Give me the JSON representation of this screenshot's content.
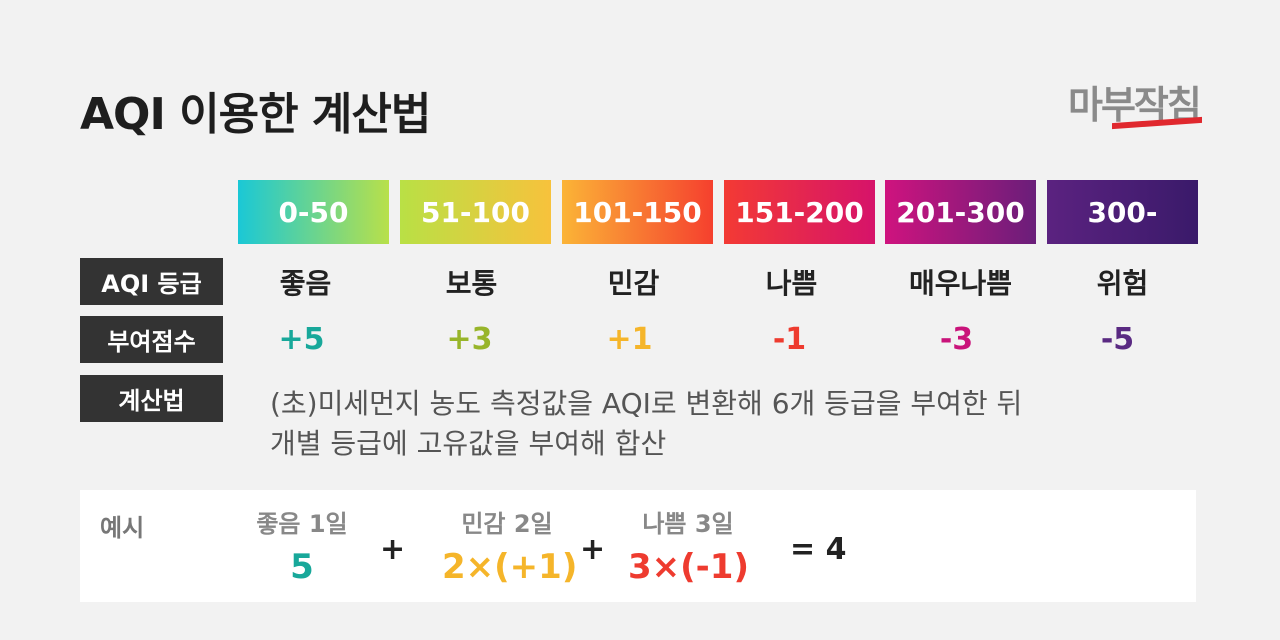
{
  "title": "AQI 이용한 계산법",
  "logo": "마부작침",
  "ranges": [
    {
      "label": "0-50",
      "color_from": "#1ac8d6",
      "color_to": "#b8e04a"
    },
    {
      "label": "51-100",
      "color_from": "#b9e045",
      "color_to": "#f7c23c"
    },
    {
      "label": "101-150",
      "color_from": "#fbb437",
      "color_to": "#f5402e"
    },
    {
      "label": "151-200",
      "color_from": "#f33a34",
      "color_to": "#d6136a"
    },
    {
      "label": "201-300",
      "color_from": "#cf137e",
      "color_to": "#6a1e7a"
    },
    {
      "label": "300-",
      "color_from": "#5b2280",
      "color_to": "#3a1a6a"
    }
  ],
  "labels": {
    "grade": "AQI 등급",
    "score": "부여점수",
    "method": "계산법"
  },
  "grades": [
    "좋음",
    "보통",
    "민감",
    "나쁨",
    "매우나쁨",
    "위험"
  ],
  "scores": [
    {
      "value": "+5",
      "color": "#18a89a"
    },
    {
      "value": "+3",
      "color": "#98b52a"
    },
    {
      "value": "+1",
      "color": "#f5b52a"
    },
    {
      "value": "-1",
      "color": "#ee3b2f"
    },
    {
      "value": "-3",
      "color": "#c9137a"
    },
    {
      "value": "-5",
      "color": "#5a2a82"
    }
  ],
  "method_lines": [
    "(초)미세먼지 농도 측정값을 AQI로 변환해 6개 등급을 부여한 뒤",
    "개별 등급에 고유값을 부여해 합산"
  ],
  "example": {
    "label": "예시",
    "items": [
      {
        "caption": "좋음 1일",
        "value": "5",
        "color": "#18a89a"
      },
      {
        "caption": "민감 2일",
        "value": "2×(+1)",
        "color": "#f5b52a"
      },
      {
        "caption": "나쁨 3일",
        "value": "3×(-1)",
        "color": "#ee3b2f"
      }
    ],
    "plus": "+",
    "result": "= 4"
  }
}
